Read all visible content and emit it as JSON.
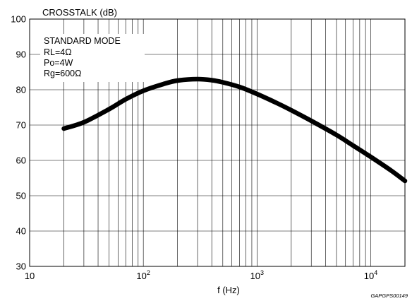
{
  "chart_data": {
    "type": "line",
    "title": "CROSSTALK (dB)",
    "xlabel": "f (Hz)",
    "ylabel": "CROSSTALK (dB)",
    "x_scale": "log",
    "xlim": [
      10,
      20000
    ],
    "ylim": [
      30,
      100
    ],
    "grid": true,
    "x_major_ticks": [
      10,
      100,
      1000,
      10000
    ],
    "x_tick_labels": [
      {
        "value": 10,
        "base": "10",
        "exp": ""
      },
      {
        "value": 100,
        "base": "10",
        "exp": "2"
      },
      {
        "value": 1000,
        "base": "10",
        "exp": "3"
      },
      {
        "value": 10000,
        "base": "10",
        "exp": "4"
      }
    ],
    "y_ticks": [
      30,
      40,
      50,
      60,
      70,
      80,
      90,
      100
    ],
    "y_tick_labels": [
      "30",
      "40",
      "50",
      "60",
      "70",
      "80",
      "90",
      "100"
    ],
    "annotation": [
      "STANDARD MODE",
      "RL=4Ω",
      "Po=4W",
      "Rg=600Ω"
    ],
    "figure_id": "GAPGPS00149",
    "series": [
      {
        "x": [
          20,
          30,
          50,
          70,
          100,
          150,
          200,
          300,
          400,
          500,
          700,
          1000,
          1500,
          2000,
          3000,
          5000,
          7000,
          10000,
          15000,
          20000
        ],
        "y": [
          69,
          70.8,
          74.5,
          77.3,
          79.7,
          81.6,
          82.6,
          83,
          82.7,
          82.1,
          80.8,
          78.8,
          76.2,
          74.2,
          71.2,
          67.2,
          64.2,
          61,
          57.2,
          54.2
        ]
      }
    ]
  }
}
